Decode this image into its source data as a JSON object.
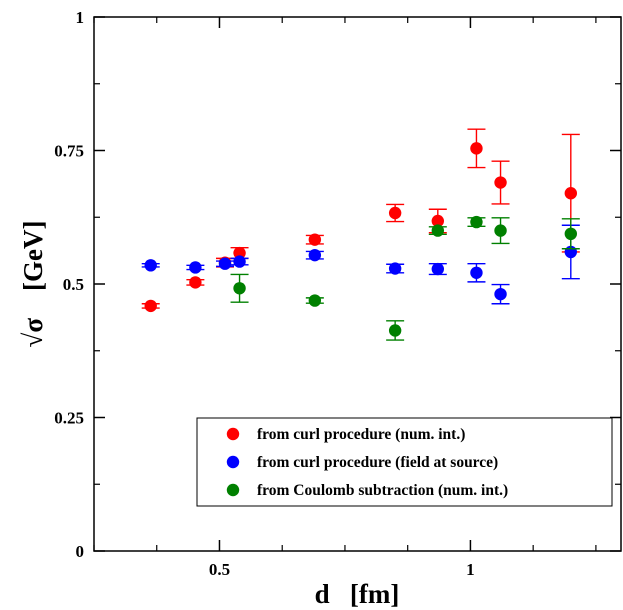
{
  "chart_data": {
    "type": "scatter",
    "xlabel": "d   [fm]",
    "ylabel": "√σ    [GeV]",
    "xlim": [
      0.25,
      1.3
    ],
    "ylim": [
      0,
      1
    ],
    "x_ticks": [
      {
        "value": 0.5,
        "label": "0.5"
      },
      {
        "value": 1,
        "label": "1"
      }
    ],
    "x_minor_ticks": [
      0.25,
      0.375,
      0.625,
      0.75,
      0.875,
      1.125,
      1.25
    ],
    "y_ticks": [
      {
        "value": 0,
        "label": "0"
      },
      {
        "value": 0.25,
        "label": "0.25"
      },
      {
        "value": 0.5,
        "label": "0.5"
      },
      {
        "value": 0.75,
        "label": "0.75"
      },
      {
        "value": 1,
        "label": "1"
      }
    ],
    "y_minor_ticks": [
      0.125,
      0.375,
      0.625,
      0.875
    ],
    "grid": false,
    "legend_position": "bottom-right",
    "series": [
      {
        "name": "from curl procedure (num. int.)",
        "color": "#ff0000",
        "points": [
          {
            "x": 0.363,
            "y": 0.459,
            "err": 0.004
          },
          {
            "x": 0.452,
            "y": 0.503,
            "err": 0.005
          },
          {
            "x": 0.511,
            "y": 0.54,
            "err": 0.008
          },
          {
            "x": 0.54,
            "y": 0.558,
            "err": 0.01
          },
          {
            "x": 0.69,
            "y": 0.583,
            "err": 0.008
          },
          {
            "x": 0.85,
            "y": 0.633,
            "err": 0.016
          },
          {
            "x": 0.935,
            "y": 0.618,
            "err": 0.022
          },
          {
            "x": 1.012,
            "y": 0.754,
            "err": 0.036
          },
          {
            "x": 1.06,
            "y": 0.69,
            "err": 0.04
          },
          {
            "x": 1.2,
            "y": 0.67,
            "err": 0.11
          }
        ]
      },
      {
        "name": "from curl procedure (field at source)",
        "color": "#0000ff",
        "points": [
          {
            "x": 0.363,
            "y": 0.535,
            "err": 0.003
          },
          {
            "x": 0.452,
            "y": 0.531,
            "err": 0.004
          },
          {
            "x": 0.511,
            "y": 0.538,
            "err": 0.005
          },
          {
            "x": 0.54,
            "y": 0.542,
            "err": 0.006
          },
          {
            "x": 0.69,
            "y": 0.554,
            "err": 0.007
          },
          {
            "x": 0.85,
            "y": 0.529,
            "err": 0.008
          },
          {
            "x": 0.935,
            "y": 0.528,
            "err": 0.01
          },
          {
            "x": 1.012,
            "y": 0.521,
            "err": 0.017
          },
          {
            "x": 1.06,
            "y": 0.481,
            "err": 0.018
          },
          {
            "x": 1.2,
            "y": 0.56,
            "err": 0.05
          }
        ]
      },
      {
        "name": "from Coulomb subtraction (num. int.)",
        "color": "#008000",
        "points": [
          {
            "x": 0.54,
            "y": 0.492,
            "err": 0.026
          },
          {
            "x": 0.69,
            "y": 0.469,
            "err": 0.005
          },
          {
            "x": 0.85,
            "y": 0.413,
            "err": 0.018
          },
          {
            "x": 0.935,
            "y": 0.6,
            "err": 0.007
          },
          {
            "x": 1.012,
            "y": 0.616,
            "err": 0.008
          },
          {
            "x": 1.06,
            "y": 0.6,
            "err": 0.024
          },
          {
            "x": 1.2,
            "y": 0.594,
            "err": 0.028
          }
        ]
      }
    ]
  }
}
